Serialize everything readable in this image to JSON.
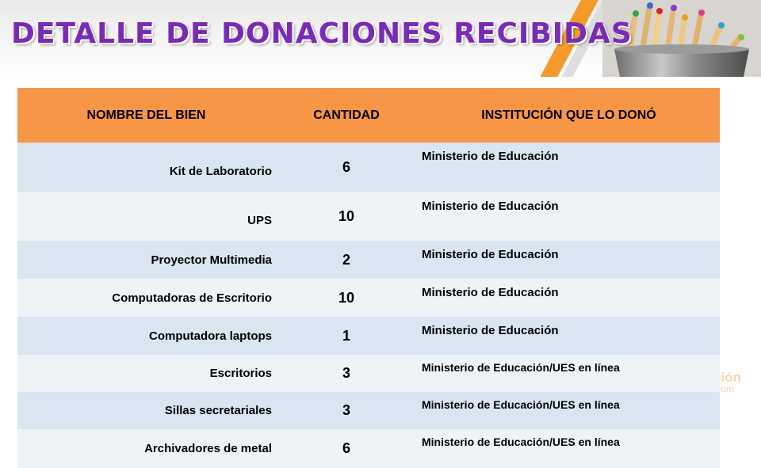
{
  "title": "DETALLE DE DONACIONES RECIBIDAS",
  "colors": {
    "title": "#7a2bb5",
    "header_bg": "#f79646",
    "row_odd": "#d9e5f0",
    "row_even": "#eef3f8",
    "accent_stripe": "#f39a2b"
  },
  "table": {
    "headers": [
      "NOMBRE DEL BIEN",
      "CANTIDAD",
      "INSTITUCIÓN QUE LO DONÓ"
    ],
    "rows": [
      {
        "name": "Kit de Laboratorio",
        "qty": "6",
        "institution": "Ministerio de Educación"
      },
      {
        "name": "UPS",
        "qty": "10",
        "institution": "Ministerio de Educación"
      },
      {
        "name": "Proyector Multimedia",
        "qty": "2",
        "institution": "Ministerio de Educación"
      },
      {
        "name": "Computadoras de Escritorio",
        "qty": "10",
        "institution": "Ministerio de Educación"
      },
      {
        "name": "Computadora laptops",
        "qty": "1",
        "institution": "Ministerio de Educación"
      },
      {
        "name": "Escritorios",
        "qty": "3",
        "institution": "Ministerio de Educación/UES en línea"
      },
      {
        "name": "Sillas secretariales",
        "qty": "3",
        "institution": "Ministerio de Educación/UES en línea"
      },
      {
        "name": "Archivadores de metal",
        "qty": "6",
        "institution": "Ministerio de Educación/UES en línea"
      }
    ]
  },
  "watermark": {
    "line1": "ción",
    "line2": ".com"
  },
  "decor": {
    "banner_image": "pencils-in-cup"
  }
}
